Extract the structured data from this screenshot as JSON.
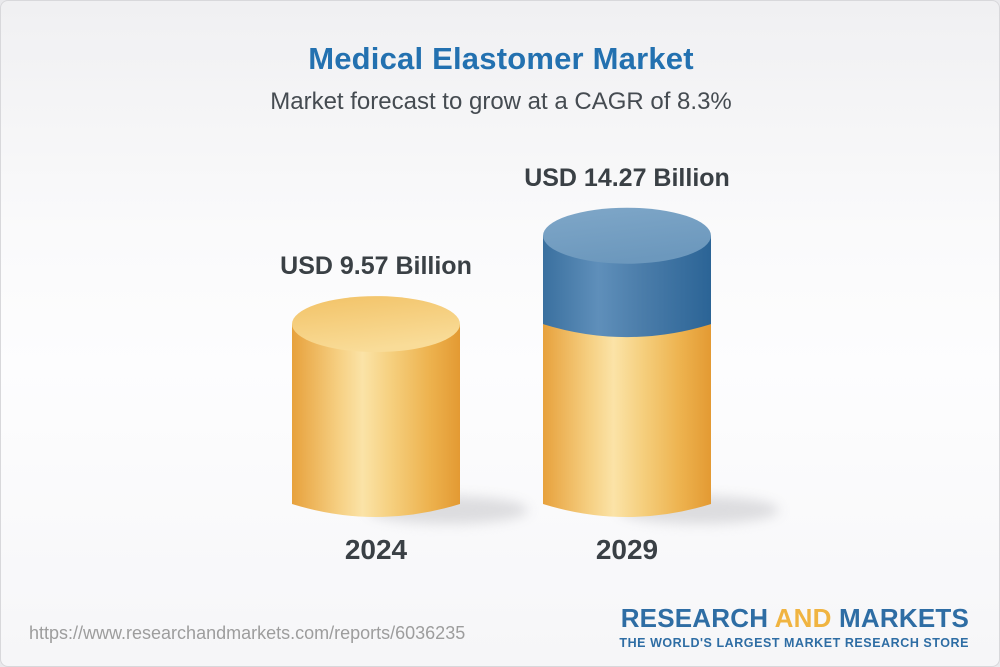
{
  "page": {
    "title": "Medical Elastomer Market",
    "subtitle": "Market forecast to grow at a CAGR of 8.3%",
    "source_url": "https://www.researchandmarkets.com/reports/6036235"
  },
  "logo": {
    "word1": "RESEARCH",
    "word2": "AND",
    "word3": "MARKETS",
    "tagline": "THE WORLD'S LARGEST MARKET RESEARCH STORE",
    "blue": "#2e6da4",
    "gold": "#f0b441"
  },
  "chart_data": {
    "type": "bar",
    "subtype": "3d-cylinder",
    "title": "Medical Elastomer Market",
    "subtitle": "Market forecast to grow at a CAGR of 8.3%",
    "unit": "USD Billion",
    "cagr_percent": 8.3,
    "categories": [
      "2024",
      "2029"
    ],
    "values": [
      9.57,
      14.27
    ],
    "value_labels": [
      "USD 9.57 Billion",
      "USD 14.27 Billion"
    ],
    "legend_position": "none",
    "grid": false,
    "colors": {
      "base_segment": "#f0c express",
      "base_yellow": "#f3c96f",
      "growth_blue": "#4579a8",
      "label_text": "#3a4045",
      "title_blue": "#2371b0"
    },
    "bars": [
      {
        "year": "2024",
        "total": 9.57,
        "label": "USD 9.57 Billion",
        "segments": [
          {
            "name": "market-value",
            "value": 9.57,
            "color": "yellow"
          }
        ]
      },
      {
        "year": "2029",
        "total": 14.27,
        "label": "USD 14.27 Billion",
        "segments": [
          {
            "name": "base-2024-level",
            "value": 9.57,
            "color": "yellow"
          },
          {
            "name": "forecast-growth",
            "value": 4.7,
            "color": "blue"
          }
        ]
      }
    ]
  }
}
